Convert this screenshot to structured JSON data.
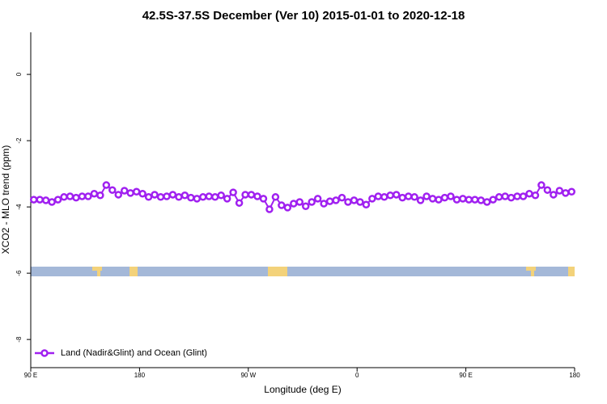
{
  "chart_data": {
    "type": "line",
    "title": "42.5S-37.5S December (Ver 10)   2015-01-01 to 2020-12-18",
    "x_label": "Longitude (deg E)",
    "y_label": "XCO2 - MLO trend (ppm)",
    "xlim": [
      90,
      540
    ],
    "xticks": [
      {
        "value": 90,
        "label": "90 E"
      },
      180,
      {
        "value": 270,
        "label": "90 W"
      },
      {
        "value": 360,
        "label": "0"
      },
      {
        "value": 450,
        "label": "90 E"
      },
      {
        "value": 540,
        "label": "180"
      }
    ],
    "ylim": [
      -8.85,
      1.27
    ],
    "yticks": [
      0,
      -2,
      -4,
      -6,
      -8
    ],
    "legend": "bottom-left",
    "x": [
      92.5,
      97.5,
      102.5,
      107.5,
      112.5,
      117.5,
      122.5,
      127.5,
      132.5,
      137.5,
      142.5,
      147.5,
      152.5,
      157.5,
      162.5,
      167.5,
      172.5,
      177.5,
      182.5,
      187.5,
      192.5,
      197.5,
      202.5,
      207.5,
      212.5,
      217.5,
      222.5,
      227.5,
      232.5,
      237.5,
      242.5,
      247.5,
      252.5,
      257.5,
      262.5,
      267.5,
      272.5,
      277.5,
      282.5,
      287.5,
      292.5,
      297.5,
      302.5,
      307.5,
      312.5,
      317.5,
      322.5,
      327.5,
      332.5,
      337.5,
      342.5,
      347.5,
      352.5,
      357.5,
      362.5,
      367.5,
      372.5,
      377.5,
      382.5,
      387.5,
      392.5,
      397.5,
      402.5,
      407.5,
      412.5,
      417.5,
      422.5,
      427.5,
      432.5,
      437.5,
      442.5,
      447.5,
      452.5,
      457.5,
      462.5,
      467.5,
      472.5,
      477.5,
      482.5,
      487.5,
      492.5,
      497.5,
      502.5,
      507.5,
      512.5,
      517.5,
      522.5,
      527.5,
      532.5,
      537.5
    ],
    "series": [
      {
        "name": "Land (Nadir&Glint) and Ocean (Glint)",
        "color": "#a020f0",
        "values": [
          -3.78,
          -3.78,
          -3.8,
          -3.85,
          -3.78,
          -3.7,
          -3.68,
          -3.72,
          -3.68,
          -3.68,
          -3.6,
          -3.65,
          -3.34,
          -3.49,
          -3.63,
          -3.51,
          -3.58,
          -3.54,
          -3.6,
          -3.7,
          -3.63,
          -3.7,
          -3.68,
          -3.63,
          -3.7,
          -3.65,
          -3.72,
          -3.75,
          -3.7,
          -3.68,
          -3.7,
          -3.65,
          -3.75,
          -3.56,
          -3.88,
          -3.63,
          -3.63,
          -3.68,
          -3.75,
          -4.07,
          -3.7,
          -3.95,
          -4.02,
          -3.9,
          -3.85,
          -3.98,
          -3.85,
          -3.75,
          -3.9,
          -3.83,
          -3.8,
          -3.72,
          -3.85,
          -3.8,
          -3.85,
          -3.93,
          -3.75,
          -3.68,
          -3.7,
          -3.65,
          -3.63,
          -3.72,
          -3.68,
          -3.7,
          -3.8,
          -3.68,
          -3.75,
          -3.78,
          -3.72,
          -3.68,
          -3.78,
          -3.75,
          -3.78,
          -3.78,
          -3.8,
          -3.85,
          -3.78,
          -3.7,
          -3.68,
          -3.72,
          -3.68,
          -3.68,
          -3.6,
          -3.65,
          -3.34,
          -3.49,
          -3.63,
          -3.51,
          -3.58,
          -3.54
        ]
      }
    ]
  }
}
